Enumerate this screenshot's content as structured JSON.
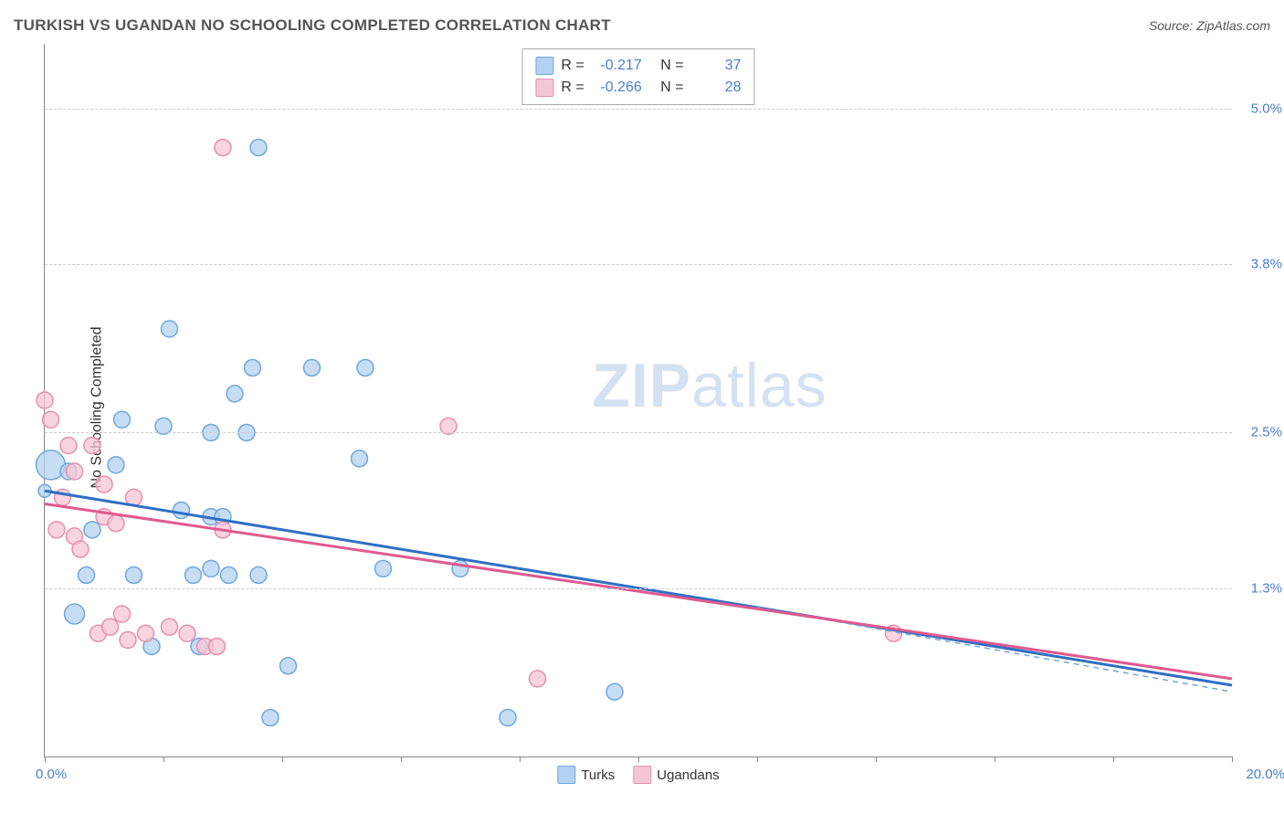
{
  "title": "TURKISH VS UGANDAN NO SCHOOLING COMPLETED CORRELATION CHART",
  "source": "Source: ZipAtlas.com",
  "ylabel": "No Schooling Completed",
  "watermark_zip": "ZIP",
  "watermark_atlas": "atlas",
  "chart": {
    "type": "scatter",
    "xlim": [
      0,
      20
    ],
    "ylim": [
      0,
      5.5
    ],
    "x_min_label": "0.0%",
    "x_max_label": "20.0%",
    "y_ticks": [
      {
        "v": 1.3,
        "label": "1.3%"
      },
      {
        "v": 2.5,
        "label": "2.5%"
      },
      {
        "v": 3.8,
        "label": "3.8%"
      },
      {
        "v": 5.0,
        "label": "5.0%"
      }
    ],
    "x_tick_positions": [
      0,
      2,
      4,
      6,
      8,
      10,
      12,
      14,
      16,
      18,
      20
    ],
    "grid_color": "#cccccc",
    "background_color": "#ffffff",
    "series": [
      {
        "name": "Turks",
        "fill": "#b3d1f0",
        "stroke": "#6fa8dc",
        "marker_radius": 9,
        "correlation_R": "-0.217",
        "correlation_N": "37",
        "regression": {
          "x1": 0,
          "y1": 2.05,
          "x2": 20,
          "y2": 0.55,
          "color": "#2f6fc4",
          "width": 3
        },
        "dashed_line": {
          "x1": 12,
          "y1": 1.15,
          "x2": 20,
          "y2": 0.5,
          "color": "#6fa8dc"
        },
        "points": [
          {
            "x": 0.1,
            "y": 2.25,
            "r": 16
          },
          {
            "x": 0.0,
            "y": 2.05,
            "r": 7
          },
          {
            "x": 0.4,
            "y": 2.2,
            "r": 9
          },
          {
            "x": 0.5,
            "y": 1.1,
            "r": 11
          },
          {
            "x": 0.7,
            "y": 1.4,
            "r": 9
          },
          {
            "x": 0.8,
            "y": 1.75,
            "r": 9
          },
          {
            "x": 1.2,
            "y": 2.25,
            "r": 9
          },
          {
            "x": 1.3,
            "y": 2.6,
            "r": 9
          },
          {
            "x": 1.5,
            "y": 1.4,
            "r": 9
          },
          {
            "x": 1.8,
            "y": 0.85,
            "r": 9
          },
          {
            "x": 2.0,
            "y": 2.55,
            "r": 9
          },
          {
            "x": 2.1,
            "y": 3.3,
            "r": 9
          },
          {
            "x": 2.3,
            "y": 1.9,
            "r": 9
          },
          {
            "x": 2.5,
            "y": 1.4,
            "r": 9
          },
          {
            "x": 2.6,
            "y": 0.85,
            "r": 9
          },
          {
            "x": 2.8,
            "y": 2.5,
            "r": 9
          },
          {
            "x": 2.8,
            "y": 1.45,
            "r": 9
          },
          {
            "x": 2.8,
            "y": 1.85,
            "r": 9
          },
          {
            "x": 3.0,
            "y": 1.85,
            "r": 9
          },
          {
            "x": 3.1,
            "y": 1.4,
            "r": 9
          },
          {
            "x": 3.2,
            "y": 2.8,
            "r": 9
          },
          {
            "x": 3.4,
            "y": 2.5,
            "r": 9
          },
          {
            "x": 3.5,
            "y": 3.0,
            "r": 9
          },
          {
            "x": 3.6,
            "y": 4.7,
            "r": 9
          },
          {
            "x": 3.6,
            "y": 1.4,
            "r": 9
          },
          {
            "x": 3.8,
            "y": 0.3,
            "r": 9
          },
          {
            "x": 4.1,
            "y": 0.7,
            "r": 9
          },
          {
            "x": 4.5,
            "y": 3.0,
            "r": 9
          },
          {
            "x": 5.3,
            "y": 2.3,
            "r": 9
          },
          {
            "x": 5.4,
            "y": 3.0,
            "r": 9
          },
          {
            "x": 5.7,
            "y": 1.45,
            "r": 9
          },
          {
            "x": 7.0,
            "y": 1.45,
            "r": 9
          },
          {
            "x": 7.8,
            "y": 0.3,
            "r": 9
          },
          {
            "x": 9.6,
            "y": 0.5,
            "r": 9
          }
        ]
      },
      {
        "name": "Ugandans",
        "fill": "#f5c6d5",
        "stroke": "#e78fae",
        "marker_radius": 9,
        "correlation_R": "-0.266",
        "correlation_N": "28",
        "regression": {
          "x1": 0,
          "y1": 1.95,
          "x2": 20,
          "y2": 0.6,
          "color": "#e05a8f",
          "width": 3
        },
        "points": [
          {
            "x": 0.0,
            "y": 2.75,
            "r": 9
          },
          {
            "x": 0.1,
            "y": 2.6,
            "r": 9
          },
          {
            "x": 0.2,
            "y": 1.75,
            "r": 9
          },
          {
            "x": 0.3,
            "y": 2.0,
            "r": 9
          },
          {
            "x": 0.4,
            "y": 2.4,
            "r": 9
          },
          {
            "x": 0.5,
            "y": 2.2,
            "r": 9
          },
          {
            "x": 0.5,
            "y": 1.7,
            "r": 9
          },
          {
            "x": 0.6,
            "y": 1.6,
            "r": 9
          },
          {
            "x": 0.8,
            "y": 2.4,
            "r": 9
          },
          {
            "x": 0.9,
            "y": 0.95,
            "r": 9
          },
          {
            "x": 1.0,
            "y": 2.1,
            "r": 9
          },
          {
            "x": 1.0,
            "y": 1.85,
            "r": 9
          },
          {
            "x": 1.1,
            "y": 1.0,
            "r": 9
          },
          {
            "x": 1.2,
            "y": 1.8,
            "r": 9
          },
          {
            "x": 1.3,
            "y": 1.1,
            "r": 9
          },
          {
            "x": 1.4,
            "y": 0.9,
            "r": 9
          },
          {
            "x": 1.5,
            "y": 2.0,
            "r": 9
          },
          {
            "x": 1.7,
            "y": 0.95,
            "r": 9
          },
          {
            "x": 2.1,
            "y": 1.0,
            "r": 9
          },
          {
            "x": 2.4,
            "y": 0.95,
            "r": 9
          },
          {
            "x": 2.7,
            "y": 0.85,
            "r": 9
          },
          {
            "x": 2.9,
            "y": 0.85,
            "r": 9
          },
          {
            "x": 3.0,
            "y": 1.75,
            "r": 9
          },
          {
            "x": 3.0,
            "y": 4.7,
            "r": 9
          },
          {
            "x": 6.8,
            "y": 2.55,
            "r": 9
          },
          {
            "x": 8.3,
            "y": 0.6,
            "r": 9
          },
          {
            "x": 14.3,
            "y": 0.95,
            "r": 9
          }
        ]
      }
    ]
  },
  "legend_turks": "Turks",
  "legend_ugandans": "Ugandans",
  "corr_label_R": "R =",
  "corr_label_N": "N ="
}
